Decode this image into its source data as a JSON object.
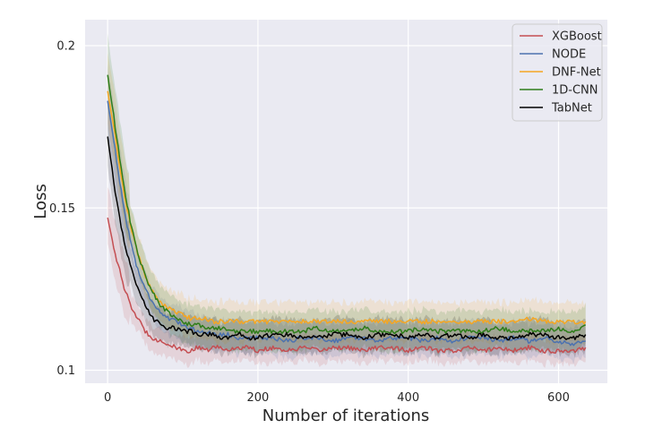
{
  "chart_data": {
    "type": "line",
    "title": "",
    "xlabel": "Number of iterations",
    "ylabel": "Loss",
    "xlim": [
      -30,
      665
    ],
    "ylim": [
      0.096,
      0.208
    ],
    "x_ticks": [
      0,
      200,
      400,
      600
    ],
    "y_ticks": [
      0.1,
      0.15,
      0.2
    ],
    "x_tick_labels": [
      "0",
      "200",
      "400",
      "600"
    ],
    "y_tick_labels": [
      "0.1",
      "0.15",
      "0.2"
    ],
    "grid": true,
    "legend_position": "top-right",
    "x": [
      0,
      10,
      20,
      30,
      40,
      50,
      60,
      70,
      80,
      90,
      100,
      110,
      120,
      130,
      140,
      150,
      160,
      170,
      180,
      190,
      200,
      220,
      240,
      260,
      280,
      300,
      320,
      340,
      360,
      380,
      400,
      420,
      440,
      460,
      480,
      500,
      520,
      540,
      560,
      580,
      600,
      620,
      636
    ],
    "series": [
      {
        "name": "XGBoost",
        "color": "#c44e52",
        "band": 0.004,
        "values": [
          0.147,
          0.136,
          0.127,
          0.12,
          0.116,
          0.112,
          0.11,
          0.109,
          0.108,
          0.107,
          0.106,
          0.106,
          0.107,
          0.106,
          0.107,
          0.107,
          0.106,
          0.107,
          0.107,
          0.107,
          0.106,
          0.107,
          0.106,
          0.107,
          0.106,
          0.107,
          0.107,
          0.106,
          0.107,
          0.107,
          0.106,
          0.107,
          0.106,
          0.106,
          0.107,
          0.106,
          0.107,
          0.106,
          0.107,
          0.106,
          0.106,
          0.106,
          0.107
        ]
      },
      {
        "name": "NODE",
        "color": "#4c72b0",
        "band": 0.005,
        "values": [
          0.183,
          0.168,
          0.152,
          0.14,
          0.131,
          0.125,
          0.121,
          0.118,
          0.116,
          0.115,
          0.114,
          0.113,
          0.112,
          0.112,
          0.111,
          0.111,
          0.111,
          0.11,
          0.11,
          0.11,
          0.11,
          0.11,
          0.109,
          0.11,
          0.11,
          0.109,
          0.11,
          0.11,
          0.109,
          0.11,
          0.11,
          0.109,
          0.11,
          0.109,
          0.11,
          0.11,
          0.109,
          0.11,
          0.109,
          0.11,
          0.109,
          0.108,
          0.109
        ]
      },
      {
        "name": "DNF-Net",
        "color": "#f5a623",
        "band": 0.006,
        "values": [
          0.186,
          0.172,
          0.157,
          0.145,
          0.136,
          0.129,
          0.124,
          0.121,
          0.119,
          0.118,
          0.117,
          0.116,
          0.116,
          0.116,
          0.115,
          0.115,
          0.115,
          0.115,
          0.115,
          0.115,
          0.115,
          0.115,
          0.115,
          0.115,
          0.115,
          0.115,
          0.115,
          0.115,
          0.115,
          0.115,
          0.115,
          0.115,
          0.115,
          0.115,
          0.115,
          0.115,
          0.115,
          0.115,
          0.116,
          0.115,
          0.115,
          0.115,
          0.115
        ]
      },
      {
        "name": "1D-CNN",
        "color": "#2e7d1a",
        "band": 0.006,
        "values": [
          0.191,
          0.175,
          0.159,
          0.146,
          0.136,
          0.129,
          0.124,
          0.12,
          0.118,
          0.116,
          0.115,
          0.114,
          0.114,
          0.113,
          0.113,
          0.113,
          0.112,
          0.112,
          0.112,
          0.112,
          0.112,
          0.112,
          0.112,
          0.112,
          0.113,
          0.112,
          0.112,
          0.113,
          0.112,
          0.112,
          0.112,
          0.113,
          0.112,
          0.112,
          0.112,
          0.112,
          0.113,
          0.112,
          0.112,
          0.112,
          0.113,
          0.112,
          0.114
        ]
      },
      {
        "name": "TabNet",
        "color": "#000000",
        "band": 0.005,
        "values": [
          0.172,
          0.155,
          0.142,
          0.132,
          0.125,
          0.12,
          0.116,
          0.114,
          0.113,
          0.113,
          0.112,
          0.112,
          0.111,
          0.111,
          0.111,
          0.11,
          0.11,
          0.111,
          0.111,
          0.11,
          0.11,
          0.111,
          0.111,
          0.11,
          0.11,
          0.111,
          0.111,
          0.11,
          0.111,
          0.111,
          0.11,
          0.111,
          0.11,
          0.111,
          0.11,
          0.111,
          0.11,
          0.11,
          0.111,
          0.111,
          0.11,
          0.11,
          0.111
        ]
      }
    ]
  }
}
